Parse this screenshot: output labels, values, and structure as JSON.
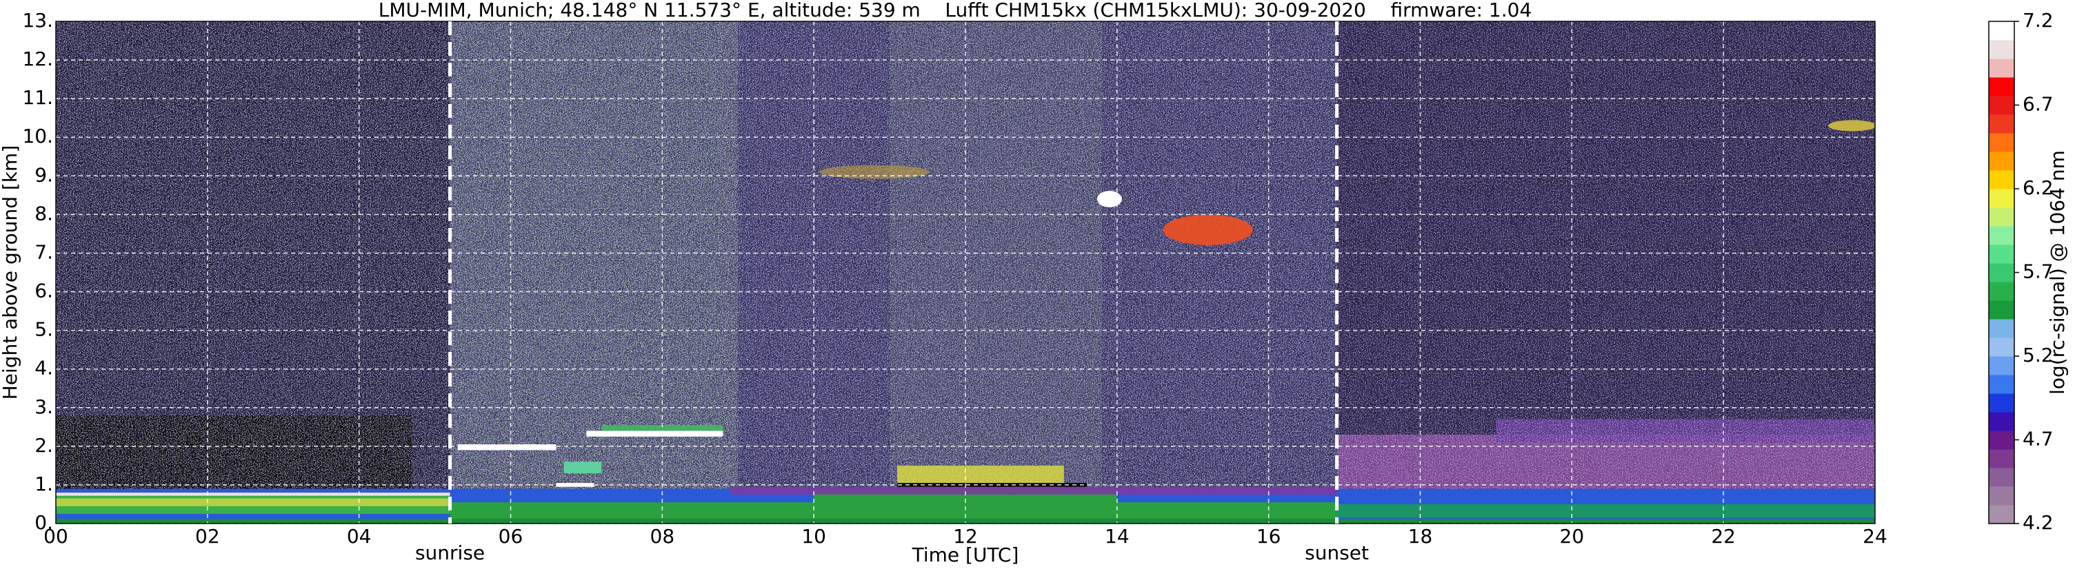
{
  "chart_data": {
    "type": "heatmap",
    "title": "LMU-MIM, Munich; 48.148° N 11.573° E, altitude: 539 m    Lufft CHM15kx (CHM15kxLMU): 30-09-2020    firmware: 1.04",
    "x_label": "Time [UTC]",
    "y_label": "Height above ground [km]",
    "xlim": [
      0,
      24
    ],
    "xticks": [
      {
        "value": 0,
        "label": "00"
      },
      {
        "value": 2,
        "label": "02"
      },
      {
        "value": 4,
        "label": "04"
      },
      {
        "value": 6,
        "label": "06"
      },
      {
        "value": 8,
        "label": "08"
      },
      10,
      12,
      14,
      16,
      18,
      20,
      22,
      24
    ],
    "ylim": [
      0,
      13
    ],
    "yticks": [
      {
        "value": 0,
        "label": "0."
      },
      {
        "value": 1,
        "label": "1."
      },
      {
        "value": 2,
        "label": "2."
      },
      {
        "value": 3,
        "label": "3."
      },
      {
        "value": 4,
        "label": "4."
      },
      {
        "value": 5,
        "label": "5."
      },
      {
        "value": 6,
        "label": "6."
      },
      {
        "value": 7,
        "label": "7."
      },
      {
        "value": 8,
        "label": "8."
      },
      {
        "value": 9,
        "label": "9."
      },
      {
        "value": 10,
        "label": "10."
      },
      {
        "value": 11,
        "label": "11."
      },
      {
        "value": 12,
        "label": "12."
      },
      {
        "value": 13,
        "label": "13."
      }
    ],
    "grid": true,
    "annotations": [
      {
        "text": "sunrise",
        "x": 5.2
      },
      {
        "text": "sunset",
        "x": 16.9
      }
    ],
    "colorbar": {
      "label": "log(rc-signal) @ 1064 nm",
      "lim": [
        4.2,
        7.2
      ],
      "ticks": [
        4.2,
        4.7,
        5.2,
        5.7,
        6.2,
        6.7,
        7.2
      ],
      "colors": [
        "#a890a8",
        "#9a7aa0",
        "#8c5e98",
        "#7e3a90",
        "#6a1a8a",
        "#3a10b0",
        "#1a3ae0",
        "#3a78f0",
        "#6aa0f0",
        "#9ac0f0",
        "#7ab4e8",
        "#1a9a3a",
        "#2ab04a",
        "#3ac870",
        "#5ae08a",
        "#8af0a0",
        "#c8f070",
        "#f0f040",
        "#ffd000",
        "#ffa000",
        "#ff7010",
        "#f03a20",
        "#e81a1a",
        "#ff0000",
        "#f0b8b8",
        "#ece0e0",
        "#ffffff"
      ]
    }
  }
}
